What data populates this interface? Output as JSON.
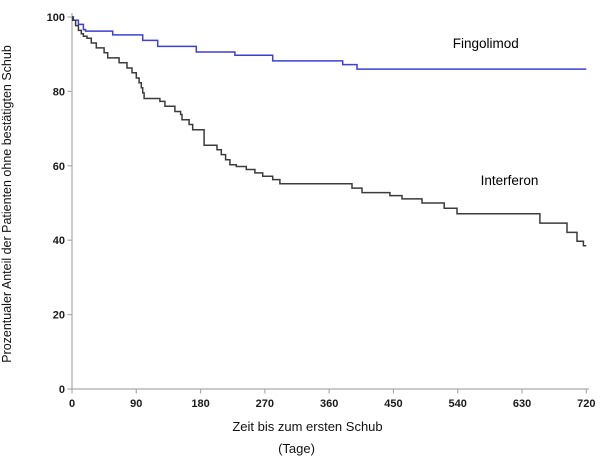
{
  "figure": {
    "y_axis_title": "Prozentualer Anteil der Patienten ohne bestätigten Schub",
    "x_axis_title": "Zeit bis zum ersten Schub",
    "x_axis_subtitle": "(Tage)"
  },
  "colors": {
    "background": "#ffffff",
    "axis": "#ababab",
    "tick_label": "#1a1a1a",
    "fingolimod_line": "#3f3fd3",
    "interferon_line": "#3b3b3b"
  },
  "chart_data": {
    "type": "line",
    "subtype": "kaplan-meier-step",
    "title": "",
    "xlabel": "Zeit bis zum ersten Schub (Tage)",
    "ylabel": "Prozentualer Anteil der Patienten ohne bestätigten Schub",
    "xlim": [
      0,
      720
    ],
    "ylim": [
      0,
      100
    ],
    "xticks": [
      0,
      90,
      180,
      270,
      360,
      450,
      540,
      630,
      720
    ],
    "yticks": [
      0,
      20,
      40,
      60,
      80,
      100
    ],
    "grid": false,
    "legend_position": "inline-annotations",
    "series": [
      {
        "name": "Fingolimod",
        "color": "#3f3fd3",
        "label_anchor": {
          "x": 533,
          "y": 91.7
        },
        "points": [
          [
            0,
            100
          ],
          [
            2,
            99.1
          ],
          [
            9,
            98
          ],
          [
            16,
            96.6
          ],
          [
            19,
            96.2
          ],
          [
            57,
            95.2
          ],
          [
            99,
            93.7
          ],
          [
            120,
            92.1
          ],
          [
            174,
            90.6
          ],
          [
            228,
            89.7
          ],
          [
            281,
            88.2
          ],
          [
            379,
            87.2
          ],
          [
            399,
            86
          ],
          [
            720,
            86
          ]
        ]
      },
      {
        "name": "Interferon",
        "color": "#3b3b3b",
        "label_anchor": {
          "x": 572,
          "y": 54.8
        },
        "points": [
          [
            0,
            100
          ],
          [
            1,
            99.1
          ],
          [
            5,
            97.7
          ],
          [
            9,
            96.4
          ],
          [
            13,
            95.5
          ],
          [
            16,
            94.8
          ],
          [
            21,
            94.3
          ],
          [
            27,
            93
          ],
          [
            34,
            91.7
          ],
          [
            45,
            90.4
          ],
          [
            50,
            89
          ],
          [
            66,
            87.7
          ],
          [
            77,
            86.3
          ],
          [
            84,
            85
          ],
          [
            90,
            83.6
          ],
          [
            94,
            82.3
          ],
          [
            97,
            81
          ],
          [
            99,
            79.6
          ],
          [
            101,
            78.1
          ],
          [
            123,
            77.3
          ],
          [
            130,
            76
          ],
          [
            144,
            74.6
          ],
          [
            152,
            73.8
          ],
          [
            154,
            72.4
          ],
          [
            164,
            71.1
          ],
          [
            169,
            69.7
          ],
          [
            185,
            65.5
          ],
          [
            203,
            64.3
          ],
          [
            209,
            63
          ],
          [
            215,
            61.6
          ],
          [
            221,
            60.3
          ],
          [
            230,
            59.8
          ],
          [
            244,
            59
          ],
          [
            256,
            58.1
          ],
          [
            267,
            57.2
          ],
          [
            281,
            56.3
          ],
          [
            291,
            55.2
          ],
          [
            392,
            54
          ],
          [
            406,
            52.8
          ],
          [
            445,
            52
          ],
          [
            462,
            51.1
          ],
          [
            490,
            50
          ],
          [
            521,
            48.6
          ],
          [
            539,
            47.1
          ],
          [
            655,
            44.6
          ],
          [
            693,
            42.1
          ],
          [
            707,
            39.7
          ],
          [
            716,
            38.5
          ],
          [
            720,
            38.5
          ]
        ]
      }
    ]
  }
}
